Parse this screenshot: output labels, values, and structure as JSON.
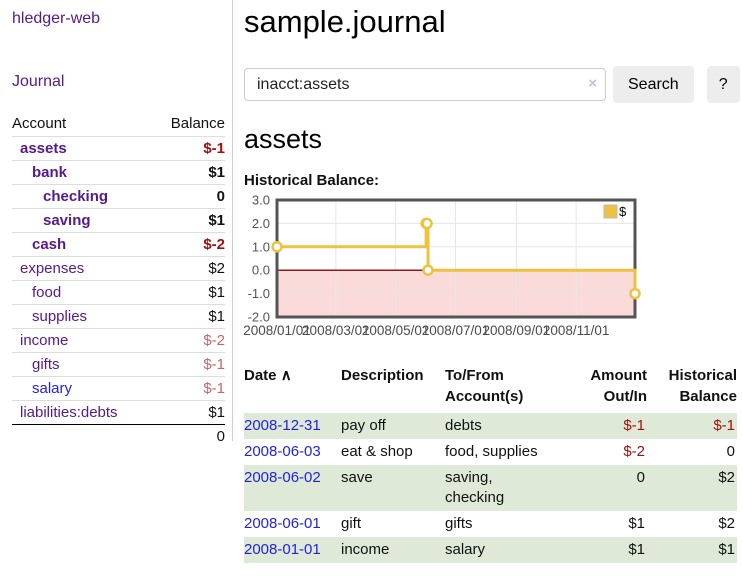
{
  "sidebar": {
    "app_title": "hledger-web",
    "nav_journal": "Journal",
    "accounts_table": {
      "headers": [
        "Account",
        "Balance"
      ],
      "rows": [
        {
          "name": "assets",
          "indent": 1,
          "balance": "$-1",
          "bold": true,
          "neg": "strong"
        },
        {
          "name": "bank",
          "indent": 2,
          "balance": "$1",
          "bold": true
        },
        {
          "name": "checking",
          "indent": 3,
          "balance": "0",
          "bold": true
        },
        {
          "name": "saving",
          "indent": 3,
          "balance": "$1",
          "bold": true
        },
        {
          "name": "cash",
          "indent": 2,
          "balance": "$-2",
          "bold": true,
          "neg": "strong"
        },
        {
          "name": "expenses",
          "indent": 1,
          "balance": "$2"
        },
        {
          "name": "food",
          "indent": 2,
          "balance": "$1"
        },
        {
          "name": "supplies",
          "indent": 2,
          "balance": "$1"
        },
        {
          "name": "income",
          "indent": 1,
          "balance": "$-2",
          "neg": "soft"
        },
        {
          "name": "gifts",
          "indent": 2,
          "balance": "$-1",
          "neg": "soft"
        },
        {
          "name": "salary",
          "indent": 2,
          "balance": "$-1",
          "neg": "soft",
          "link_style": "unvisited"
        },
        {
          "name": "liabilities:debts",
          "indent": 1,
          "balance": "$1"
        }
      ],
      "total": "0"
    }
  },
  "main": {
    "title": "sample.journal",
    "search": {
      "value": "inacct:assets",
      "clear_icon": "×",
      "search_button": "Search",
      "help_button": "?"
    },
    "account_heading": "assets",
    "chart_label": "Historical Balance:",
    "register_table": {
      "header": {
        "date": "Date",
        "sort_icon": "∧",
        "description": "Description",
        "tofrom_line1": "To/From",
        "tofrom_line2": "Account(s)",
        "amount_line1": "Amount",
        "amount_line2": "Out/In",
        "balance_line1": "Historical",
        "balance_line2": "Balance"
      },
      "rows": [
        {
          "date": "2008-12-31",
          "description": "pay off",
          "accounts": "debts",
          "amount": "$-1",
          "amount_neg": true,
          "balance": "$-1",
          "balance_neg": true,
          "shaded": true
        },
        {
          "date": "2008-06-03",
          "description": "eat & shop",
          "accounts": "food, supplies",
          "amount": "$-2",
          "amount_neg": true,
          "balance": "0",
          "balance_neg": false,
          "shaded": false
        },
        {
          "date": "2008-06-02",
          "description": "save",
          "accounts": "saving, checking",
          "amount": "0",
          "amount_neg": false,
          "balance": "$2",
          "balance_neg": false,
          "shaded": true
        },
        {
          "date": "2008-06-01",
          "description": "gift",
          "accounts": "gifts",
          "amount": "$1",
          "amount_neg": false,
          "balance": "$2",
          "balance_neg": false,
          "shaded": false
        },
        {
          "date": "2008-01-01",
          "description": "income",
          "accounts": "salary",
          "amount": "$1",
          "amount_neg": false,
          "balance": "$1",
          "balance_neg": false,
          "shaded": true
        }
      ]
    }
  },
  "chart_data": {
    "type": "line",
    "step": true,
    "title": "Historical Balance",
    "series": [
      {
        "name": "$",
        "color": "#edc240",
        "points": [
          [
            "2008-01-01",
            1
          ],
          [
            "2008-06-01",
            2
          ],
          [
            "2008-06-02",
            2
          ],
          [
            "2008-06-03",
            0
          ],
          [
            "2008-12-31",
            -1
          ]
        ]
      }
    ],
    "x_range": [
      "2008-01-01",
      "2008-12-31"
    ],
    "ylim": [
      -2,
      3
    ],
    "y_ticks": [
      3,
      2,
      1,
      0,
      -1,
      -2
    ],
    "x_tick_labels": [
      "2008/01/01",
      "2008/03/01",
      "2008/05/01",
      "2008/07/01",
      "2008/09/01",
      "2008/11/01"
    ],
    "legend": {
      "label": "$",
      "position": "top-right"
    },
    "grid": true
  },
  "colors": {
    "link_purple": "#551a8b",
    "link_blue": "#2222dd",
    "negative_strong": "#a01010",
    "negative_soft": "#c06868",
    "row_stripe_green": "#dfe9d8",
    "chart_series_yellow": "#edc240",
    "chart_below_zero_pink": "#fbdada",
    "chart_zero_line_red": "#8f1a1a",
    "chart_border_gray": "#545454",
    "chart_grid_gray": "#e6e6e6",
    "chart_tick_text": "#545454"
  }
}
